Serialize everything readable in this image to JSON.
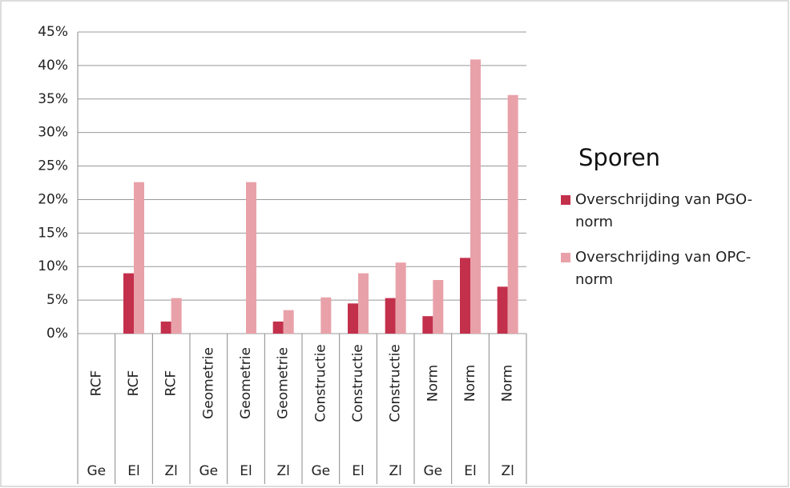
{
  "chart_data": {
    "type": "bar",
    "legend_title": "Sporen",
    "categories": [
      "RCF",
      "RCF",
      "RCF",
      "Geometrie",
      "Geometrie",
      "Geometrie",
      "Constructie",
      "Constructie",
      "Constructie",
      "Norm",
      "Norm",
      "Norm"
    ],
    "subcategories": [
      "Ge",
      "El",
      "Zl",
      "Ge",
      "El",
      "Zl",
      "Ge",
      "El",
      "Zl",
      "Ge",
      "El",
      "Zl"
    ],
    "series": [
      {
        "name": "Overschrijding van PGO-norm",
        "color": "#c3304c",
        "values": [
          0,
          9,
          1.8,
          0,
          0,
          1.8,
          0,
          4.5,
          5.3,
          2.6,
          11.3,
          7
        ]
      },
      {
        "name": "Overschrijding van OPC-norm",
        "color": "#e9a1a9",
        "values": [
          0,
          22.6,
          5.3,
          0,
          22.6,
          3.5,
          5.4,
          9,
          10.6,
          8,
          40.9,
          35.6
        ]
      }
    ],
    "ylim": [
      0,
      45
    ],
    "yticks": [
      {
        "value": 0,
        "label": "0%"
      },
      {
        "value": 5,
        "label": "5%"
      },
      {
        "value": 10,
        "label": "10%"
      },
      {
        "value": 15,
        "label": "15%"
      },
      {
        "value": 20,
        "label": "20%"
      },
      {
        "value": 25,
        "label": "25%"
      },
      {
        "value": 30,
        "label": "30%"
      },
      {
        "value": 35,
        "label": "35%"
      },
      {
        "value": 40,
        "label": "40%"
      },
      {
        "value": 45,
        "label": "45%"
      }
    ],
    "grid": true,
    "legend": "right"
  }
}
